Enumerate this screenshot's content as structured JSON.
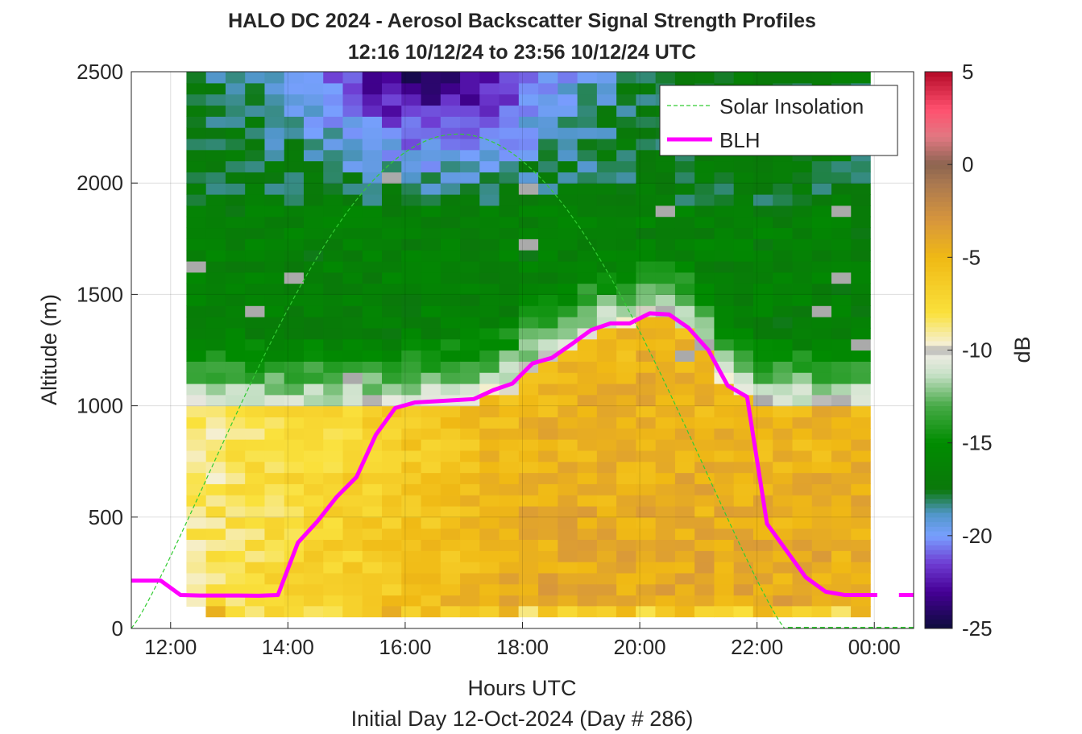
{
  "chart_data": {
    "type": "heatmap",
    "title": [
      "HALO DC 2024 - Aerosol Backscatter Signal Strength Profiles",
      "12:16 10/12/24 to 23:56 10/12/24  UTC"
    ],
    "xlabel": "Hours UTC",
    "xlabel2": "Initial Day 12-Oct-2024 (Day # 286)",
    "ylabel": "Altitude (m)",
    "colorbar_label": "dB",
    "xlim": [
      11.33,
      24.67
    ],
    "ylim": [
      0,
      2500
    ],
    "clim": [
      -25,
      5
    ],
    "x_ticks": [
      {
        "value": 12,
        "label": "12:00"
      },
      {
        "value": 14,
        "label": "14:00"
      },
      {
        "value": 16,
        "label": "16:00"
      },
      {
        "value": 18,
        "label": "18:00"
      },
      {
        "value": 20,
        "label": "20:00"
      },
      {
        "value": 22,
        "label": "22:00"
      },
      {
        "value": 24,
        "label": "00:00"
      }
    ],
    "y_ticks": [
      {
        "value": 0,
        "label": "0"
      },
      {
        "value": 500,
        "label": "500"
      },
      {
        "value": 1000,
        "label": "1000"
      },
      {
        "value": 1500,
        "label": "1500"
      },
      {
        "value": 2000,
        "label": "2000"
      },
      {
        "value": 2500,
        "label": "2500"
      }
    ],
    "colorbar_ticks": [
      {
        "value": 5,
        "label": "5"
      },
      {
        "value": 0,
        "label": "0"
      },
      {
        "value": -5,
        "label": "-5"
      },
      {
        "value": -10,
        "label": "-10"
      },
      {
        "value": -15,
        "label": "-15"
      },
      {
        "value": -20,
        "label": "-20"
      },
      {
        "value": -25,
        "label": "-25"
      }
    ],
    "grid": true,
    "legend_position": "top-right",
    "legend": [
      {
        "label": "Solar Insolation",
        "color": "#33cc33",
        "style": "dashed"
      },
      {
        "label": "BLH",
        "color": "#ff00ff",
        "style": "solid"
      }
    ],
    "heatmap_extent": {
      "x_start": 12.27,
      "x_end": 23.93,
      "x_bin": 0.3333,
      "y_start": 100,
      "y_end": 2500,
      "y_bin": 50,
      "lowest_bin_x_start": 12.6
    },
    "blh": [
      {
        "x": 11.33,
        "y": 215
      },
      {
        "x": 11.83,
        "y": 215
      },
      {
        "x": 12.17,
        "y": 150
      },
      {
        "x": 12.5,
        "y": 148
      },
      {
        "x": 13.17,
        "y": 148
      },
      {
        "x": 13.5,
        "y": 147
      },
      {
        "x": 13.83,
        "y": 150
      },
      {
        "x": 14.17,
        "y": 385
      },
      {
        "x": 14.5,
        "y": 480
      },
      {
        "x": 14.83,
        "y": 590
      },
      {
        "x": 15.17,
        "y": 680
      },
      {
        "x": 15.5,
        "y": 870
      },
      {
        "x": 15.83,
        "y": 990
      },
      {
        "x": 16.17,
        "y": 1015
      },
      {
        "x": 16.5,
        "y": 1020
      },
      {
        "x": 17.17,
        "y": 1030
      },
      {
        "x": 17.5,
        "y": 1070
      },
      {
        "x": 17.83,
        "y": 1100
      },
      {
        "x": 18.17,
        "y": 1190
      },
      {
        "x": 18.5,
        "y": 1215
      },
      {
        "x": 18.83,
        "y": 1275
      },
      {
        "x": 19.17,
        "y": 1340
      },
      {
        "x": 19.5,
        "y": 1370
      },
      {
        "x": 19.83,
        "y": 1370
      },
      {
        "x": 20.17,
        "y": 1415
      },
      {
        "x": 20.5,
        "y": 1410
      },
      {
        "x": 20.83,
        "y": 1350
      },
      {
        "x": 21.17,
        "y": 1250
      },
      {
        "x": 21.5,
        "y": 1090
      },
      {
        "x": 21.83,
        "y": 1040
      },
      {
        "x": 22.17,
        "y": 470
      },
      {
        "x": 22.5,
        "y": 350
      },
      {
        "x": 22.83,
        "y": 230
      },
      {
        "x": 23.17,
        "y": 165
      },
      {
        "x": 23.5,
        "y": 150
      },
      {
        "x": 24.05,
        "y": 150
      },
      {
        "x": 24.42,
        "y": 150
      },
      {
        "x": 24.67,
        "y": 150
      }
    ],
    "solar_insolation": {
      "rise_x": 11.33,
      "peak_x": 16.9,
      "peak_y": 2220,
      "set_x": 22.47
    }
  }
}
